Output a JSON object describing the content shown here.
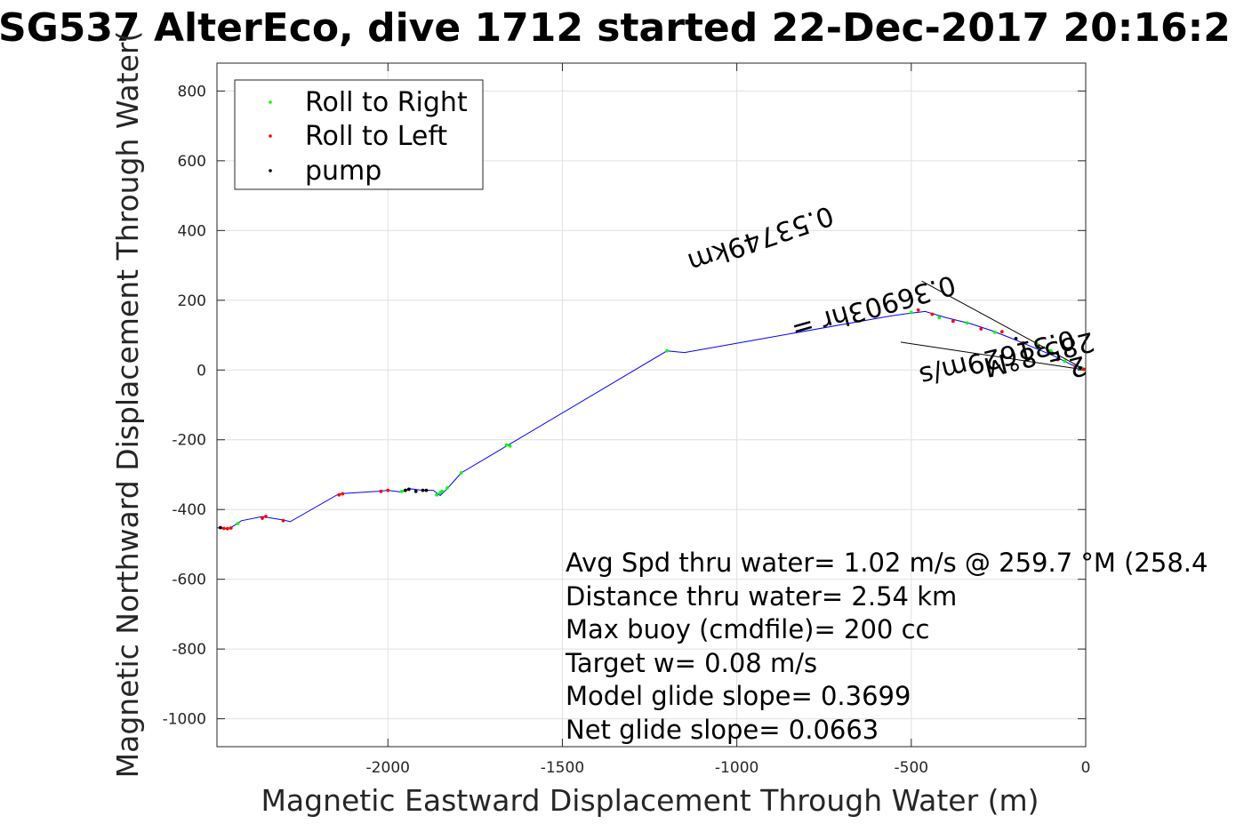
{
  "chart_data": {
    "type": "line",
    "title": "SG537 AlterEco, dive 1712 started 22-Dec-2017 20:16:2",
    "xlabel": "Magnetic Eastward Displacement Through Water (m)",
    "ylabel": "Magnetic Northward Displacement Through Water(",
    "xlim": [
      -2490,
      0
    ],
    "ylim": [
      -1080,
      880
    ],
    "xticks": [
      -2000,
      -1500,
      -1000,
      -500,
      0
    ],
    "xtick_labels": [
      "-2000",
      "-1500",
      "-1000",
      "-500",
      "0"
    ],
    "yticks": [
      800,
      600,
      400,
      200,
      0,
      -200,
      -400,
      -600,
      -800,
      -1000
    ],
    "ytick_labels": [
      "800",
      "600",
      "400",
      "200",
      "0",
      "-200",
      "-400",
      "-600",
      "-800",
      "-1000"
    ],
    "grid": true,
    "legend_position": "top-left",
    "legend": [
      {
        "label": "Roll to Right",
        "color": "#00ff00"
      },
      {
        "label": "Roll to Left",
        "color": "#ff0000"
      },
      {
        "label": "pump",
        "color": "#000000"
      }
    ],
    "track": {
      "color": "#0000ff",
      "x": [
        0,
        -40,
        -90,
        -150,
        -210,
        -270,
        -330,
        -400,
        -460,
        -510,
        -560,
        -1150,
        -1200,
        -1790,
        -1830,
        -1850,
        -1870,
        -1900,
        -1940,
        -1960,
        -2000,
        -2030,
        -2140,
        -2280,
        -2300,
        -2360,
        -2420,
        -2450,
        -2470,
        -2490
      ],
      "y": [
        0,
        15,
        40,
        65,
        90,
        113,
        133,
        150,
        168,
        162,
        155,
        50,
        55,
        -295,
        -340,
        -360,
        -345,
        -345,
        -340,
        -350,
        -345,
        -348,
        -355,
        -435,
        -430,
        -420,
        -432,
        -452,
        -455,
        -452
      ]
    },
    "roll_right": {
      "x": [
        -10,
        -60,
        -100,
        -140,
        -260,
        -340,
        -420,
        -500,
        -1200,
        -1660,
        -1650,
        -1790,
        -1830,
        -1850,
        -1845,
        -1860,
        -1950,
        -1960,
        -2430
      ],
      "y": [
        5,
        25,
        55,
        75,
        108,
        135,
        150,
        165,
        55,
        -215,
        -218,
        -295,
        -338,
        -352,
        -348,
        -358,
        -345,
        -348,
        -440
      ]
    },
    "roll_left": {
      "x": [
        -5,
        -30,
        -80,
        -180,
        -240,
        -300,
        -380,
        -440,
        -480,
        -2020,
        -2000,
        -2130,
        -2140,
        -2300,
        -2350,
        -2360,
        -2450,
        -2460,
        -2470,
        -2480
      ],
      "y": [
        2,
        10,
        30,
        78,
        110,
        118,
        140,
        160,
        172,
        -348,
        -345,
        -355,
        -358,
        -432,
        -420,
        -425,
        -453,
        -455,
        -454,
        -452
      ]
    },
    "pump": {
      "x": [
        -15,
        -200,
        -1890,
        -1900,
        -1920,
        -1940,
        -1950,
        -2480
      ],
      "y": [
        6,
        90,
        -345,
        -345,
        -348,
        -342,
        -345,
        -452
      ]
    },
    "current_lines": [
      {
        "x": [
          0,
          -470
        ],
        "y": [
          0,
          255
        ]
      },
      {
        "x": [
          0,
          -530
        ],
        "y": [
          0,
          80
        ]
      }
    ],
    "rotated_labels": [
      {
        "text": "0.53749km",
        "rotation_deg": 161,
        "x": -940,
        "y": 400
      },
      {
        "text": "0.36903hr =",
        "rotation_deg": 164,
        "x": -615,
        "y": 205
      },
      {
        "text": "0.31629m/s",
        "rotation_deg": 166,
        "x": -260,
        "y": 60
      },
      {
        "text": "285.8°M",
        "rotation_deg": 166,
        "x": -140,
        "y": 70
      },
      {
        "text": "2",
        "rotation_deg": 166,
        "x": -30,
        "y": 35
      }
    ],
    "annotations": [
      "Avg Spd thru water=  1.02 m/s @ 259.7 °M (258.4",
      "Distance thru water=  2.54 km",
      "Max buoy (cmdfile)= 200 cc",
      "Target w= 0.08 m/s",
      "Model glide slope= 0.3699",
      "Net glide slope= 0.0663"
    ]
  }
}
